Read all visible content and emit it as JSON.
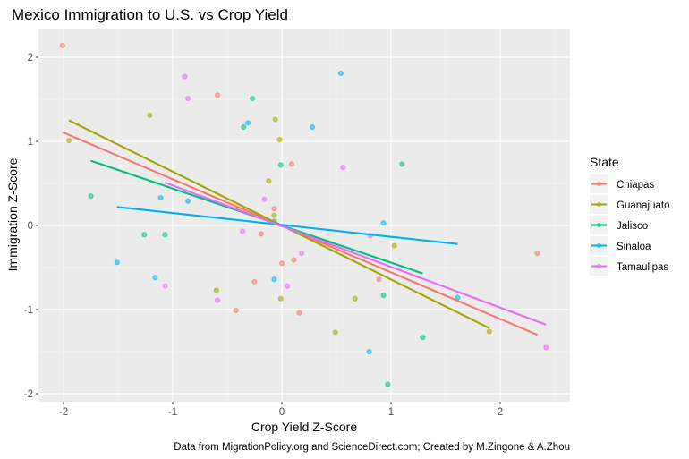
{
  "chart_data": {
    "type": "scatter",
    "title": "Mexico Immigration to U.S. vs Crop Yield",
    "xlabel": "Crop Yield Z-Score",
    "ylabel": "Immigration Z-Score",
    "caption": "Data from MigrationPolicy.org and ScienceDirect.com; Created by M.Zingone & A.Zhou",
    "xlim": [
      -2.23,
      2.6
    ],
    "ylim": [
      -2.1,
      2.3
    ],
    "x_ticks": [
      -2,
      -1,
      0,
      1,
      2
    ],
    "x_tick_labels": [
      "-2",
      "-1",
      "0",
      "1",
      "2"
    ],
    "y_ticks": [
      -2,
      -1,
      0,
      1,
      2
    ],
    "y_tick_labels": [
      "-2",
      "-1",
      "0",
      "1",
      "2"
    ],
    "grid": true,
    "legend": {
      "title": "State",
      "position": "right"
    },
    "series": [
      {
        "name": "Chiapas",
        "color": "#F8766D",
        "points": [
          [
            -2.01,
            2.14
          ],
          [
            -0.59,
            1.55
          ],
          [
            0.09,
            0.73
          ],
          [
            -0.07,
            0.2
          ],
          [
            -0.19,
            -0.1
          ],
          [
            0.11,
            -0.41
          ],
          [
            0.0,
            -0.45
          ],
          [
            -0.25,
            -0.67
          ],
          [
            -0.42,
            -1.01
          ],
          [
            0.16,
            -1.04
          ],
          [
            0.89,
            -0.64
          ],
          [
            2.34,
            -0.33
          ]
        ],
        "fit": [
          [
            -2.01,
            1.11
          ],
          [
            2.34,
            -1.3
          ]
        ]
      },
      {
        "name": "Guanajuato",
        "color": "#A3A500",
        "points": [
          [
            -1.95,
            1.01
          ],
          [
            -1.21,
            1.31
          ],
          [
            -0.06,
            1.26
          ],
          [
            -0.02,
            1.02
          ],
          [
            -0.12,
            0.53
          ],
          [
            -0.07,
            0.12
          ],
          [
            -0.6,
            -0.77
          ],
          [
            -0.01,
            -0.87
          ],
          [
            0.67,
            -0.87
          ],
          [
            0.49,
            -1.27
          ],
          [
            1.03,
            -0.24
          ],
          [
            1.9,
            -1.26
          ]
        ],
        "fit": [
          [
            -1.95,
            1.25
          ],
          [
            1.9,
            -1.22
          ]
        ]
      },
      {
        "name": "Jalisco",
        "color": "#00BF7D",
        "points": [
          [
            -0.27,
            1.51
          ],
          [
            -0.35,
            1.17
          ],
          [
            -0.01,
            0.72
          ],
          [
            1.1,
            0.73
          ],
          [
            -1.75,
            0.35
          ],
          [
            -1.26,
            -0.11
          ],
          [
            -1.07,
            -0.11
          ],
          [
            -0.07,
            0.05
          ],
          [
            0.93,
            -0.83
          ],
          [
            1.29,
            -1.33
          ],
          [
            0.97,
            -1.89
          ]
        ],
        "fit": [
          [
            -1.75,
            0.77
          ],
          [
            1.29,
            -0.57
          ]
        ]
      },
      {
        "name": "Sinaloa",
        "color": "#00B0F6",
        "points": [
          [
            0.54,
            1.81
          ],
          [
            -0.31,
            1.22
          ],
          [
            0.28,
            1.17
          ],
          [
            -1.11,
            0.33
          ],
          [
            -0.86,
            0.29
          ],
          [
            -1.51,
            -0.44
          ],
          [
            -1.16,
            -0.62
          ],
          [
            -0.07,
            -0.64
          ],
          [
            0.8,
            -1.5
          ],
          [
            0.93,
            0.03
          ],
          [
            1.61,
            -0.86
          ]
        ],
        "fit": [
          [
            -1.51,
            0.22
          ],
          [
            1.61,
            -0.22
          ]
        ]
      },
      {
        "name": "Tamaulipas",
        "color": "#E76BF3",
        "points": [
          [
            -0.89,
            1.77
          ],
          [
            -0.86,
            1.51
          ],
          [
            0.56,
            0.69
          ],
          [
            -0.16,
            0.31
          ],
          [
            -0.36,
            -0.07
          ],
          [
            0.18,
            -0.33
          ],
          [
            0.81,
            -0.12
          ],
          [
            -1.07,
            -0.72
          ],
          [
            0.05,
            -0.72
          ],
          [
            -0.59,
            -0.89
          ],
          [
            2.42,
            -1.45
          ]
        ],
        "fit": [
          [
            -1.07,
            0.51
          ],
          [
            2.42,
            -1.18
          ]
        ]
      }
    ]
  }
}
